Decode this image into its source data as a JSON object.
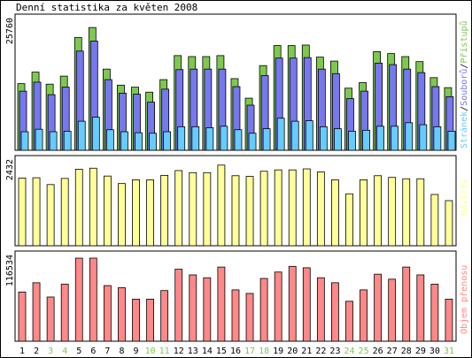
{
  "title": "Denní statistika za květen 2008",
  "colors": {
    "hits": "#7ec850",
    "files": "#7777ee",
    "pages": "#66ccff",
    "visits": "#ffff99",
    "kbytes": "#ff8888",
    "axis": "#000000",
    "weekend_label": "#7ec850",
    "weekday_label": "#000000"
  },
  "legend": {
    "top_pages": "Stránek",
    "top_sep1": "/",
    "top_files": "Souborů",
    "top_sep2": "/",
    "top_hits": "Přístupů",
    "middle": "Návštěv",
    "bottom": "Objem přenosu"
  },
  "chart_data": [
    {
      "type": "bar",
      "title": "Denní statistika za květen 2008",
      "ymax_label": "25760",
      "ylim": [
        0,
        25760
      ],
      "categories": [
        "1",
        "2",
        "3",
        "4",
        "5",
        "6",
        "7",
        "8",
        "9",
        "10",
        "11",
        "12",
        "13",
        "14",
        "15",
        "16",
        "17",
        "18",
        "19",
        "20",
        "21",
        "22",
        "23",
        "24",
        "25",
        "26",
        "27",
        "28",
        "29",
        "30",
        "31"
      ],
      "weekend_days": [
        "3",
        "4",
        "10",
        "11",
        "17",
        "18",
        "24",
        "25",
        "31"
      ],
      "series": [
        {
          "name": "Přístupů",
          "values": [
            13300,
            15600,
            13200,
            14800,
            22500,
            24500,
            16200,
            13000,
            12600,
            11600,
            14100,
            18900,
            18700,
            18700,
            18900,
            14300,
            10400,
            16900,
            20900,
            20900,
            21000,
            18600,
            17800,
            12400,
            13500,
            19700,
            19300,
            18700,
            17700,
            14500,
            12500
          ]
        },
        {
          "name": "Souborů",
          "values": [
            11800,
            13600,
            11100,
            12600,
            19800,
            21800,
            14100,
            11400,
            11200,
            9600,
            12200,
            16100,
            16200,
            16200,
            16200,
            12700,
            9000,
            14900,
            18400,
            18400,
            18500,
            16200,
            15300,
            10300,
            11800,
            17400,
            17100,
            16200,
            15500,
            12700,
            10700
          ]
        },
        {
          "name": "Stránek",
          "values": [
            3700,
            4200,
            3700,
            3800,
            5800,
            6600,
            4100,
            3700,
            3500,
            3400,
            3700,
            4700,
            4700,
            4500,
            4800,
            4100,
            3400,
            4300,
            6400,
            5800,
            5900,
            4700,
            4300,
            3800,
            4000,
            4800,
            4800,
            5500,
            5100,
            4700,
            3800
          ]
        }
      ]
    },
    {
      "type": "bar",
      "ymax_label": "2432",
      "ylim": [
        0,
        2432
      ],
      "categories": [
        "1",
        "2",
        "3",
        "4",
        "5",
        "6",
        "7",
        "8",
        "9",
        "10",
        "11",
        "12",
        "13",
        "14",
        "15",
        "16",
        "17",
        "18",
        "19",
        "20",
        "21",
        "22",
        "23",
        "24",
        "25",
        "26",
        "27",
        "28",
        "29",
        "30",
        "31"
      ],
      "series": [
        {
          "name": "Návštěv",
          "values": [
            1980,
            1990,
            1790,
            1970,
            2240,
            2270,
            2040,
            1820,
            1930,
            1930,
            2060,
            2200,
            2140,
            2140,
            2360,
            2050,
            2030,
            2180,
            2220,
            2220,
            2250,
            2160,
            1930,
            1520,
            1930,
            2050,
            2000,
            1960,
            1960,
            1500,
            1320
          ]
        }
      ]
    },
    {
      "type": "bar",
      "ymax_label": "116534",
      "ylim": [
        0,
        116534
      ],
      "categories": [
        "1",
        "2",
        "3",
        "4",
        "5",
        "6",
        "7",
        "8",
        "9",
        "10",
        "11",
        "12",
        "13",
        "14",
        "15",
        "16",
        "17",
        "18",
        "19",
        "20",
        "21",
        "22",
        "23",
        "24",
        "25",
        "26",
        "27",
        "28",
        "29",
        "30",
        "31"
      ],
      "series": [
        {
          "name": "Objem přenosu",
          "values": [
            69000,
            82000,
            62000,
            80000,
            116500,
            116500,
            78000,
            75000,
            59000,
            59000,
            71000,
            101000,
            93000,
            89000,
            104000,
            72000,
            67000,
            88000,
            97000,
            105000,
            103000,
            89000,
            82000,
            56000,
            72000,
            94000,
            87000,
            104000,
            93000,
            80000,
            59000
          ]
        }
      ]
    }
  ]
}
